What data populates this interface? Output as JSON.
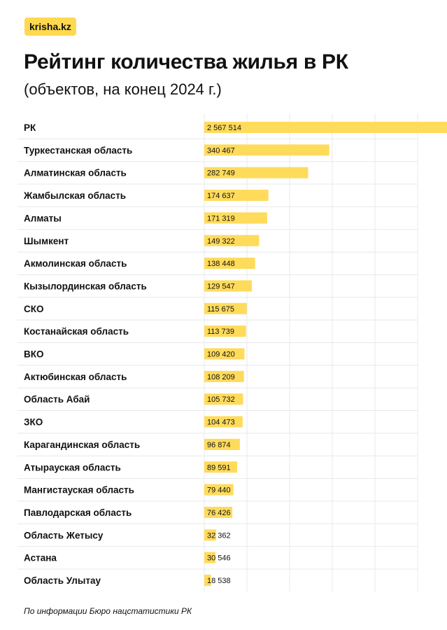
{
  "logo": "krisha.kz",
  "title": "Рейтинг количества жилья в РК",
  "subtitle": "(объектов, на конец 2024 г.)",
  "source": "По информации Бюро нацстатистики РК",
  "colors": {
    "bar": "#ffdb5c",
    "grid": "#e8e8e8"
  },
  "chart_data": {
    "type": "bar",
    "orientation": "horizontal",
    "title": "Рейтинг количества жилья в РК",
    "subtitle": "(объектов, на конец 2024 г.)",
    "categories": [
      "РК",
      "Туркестанская область",
      "Алматинская область",
      "Жамбылская область",
      "Алматы",
      "Шымкент",
      "Акмолинская область",
      "Кызылординская область",
      "СКО",
      "Костанайская область",
      "ВКО",
      "Актюбинская область",
      "Область Абай",
      "ЗКО",
      "Карагандинская область",
      "Атырауская область",
      "Мангистауская область",
      "Павлодарская область",
      "Область Жетысу",
      "Астана",
      "Область Улытау"
    ],
    "values": [
      2567514,
      340467,
      282749,
      174637,
      171319,
      149322,
      138448,
      129547,
      115675,
      113739,
      109420,
      108209,
      105732,
      104473,
      96874,
      89591,
      79440,
      76426,
      32362,
      30546,
      18538
    ],
    "labels": [
      "2 567 514",
      "340 467",
      "282 749",
      "174 637",
      "171 319",
      "149 322",
      "138 448",
      "129 547",
      "115 675",
      "113 739",
      "109 420",
      "108 209",
      "105 732",
      "104 473",
      "96 874",
      "89 591",
      "79 440",
      "76 426",
      "32 362",
      "30 546",
      "18 538"
    ],
    "grid": true
  }
}
